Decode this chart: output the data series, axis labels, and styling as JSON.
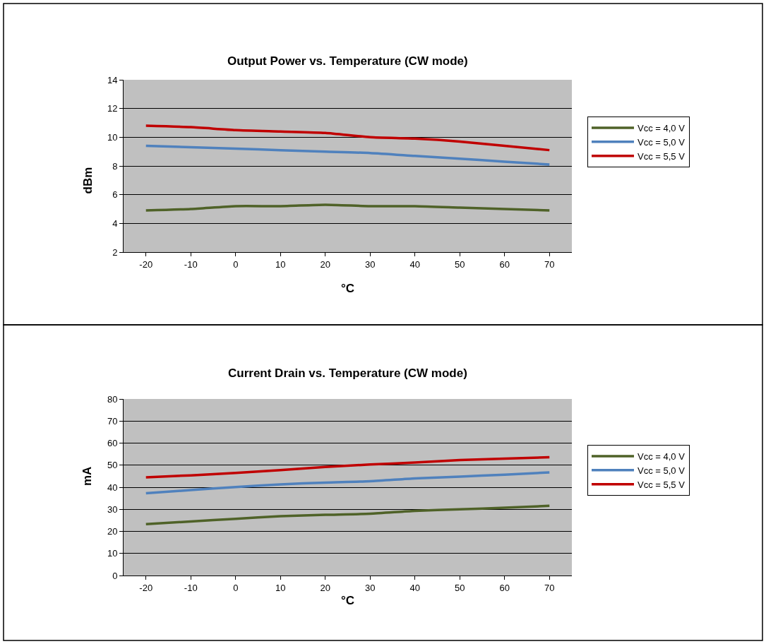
{
  "chart_data": [
    {
      "type": "line",
      "title": "Output Power vs. Temperature (CW mode)",
      "xlabel": "°C",
      "ylabel": "dBm",
      "categories": [
        "-20",
        "-10",
        "0",
        "10",
        "20",
        "30",
        "40",
        "50",
        "60",
        "70"
      ],
      "series": [
        {
          "name": "Vcc = 4,0 V",
          "color": "#4f6228",
          "values": [
            4.9,
            5.0,
            5.2,
            5.2,
            5.3,
            5.2,
            5.2,
            5.1,
            5.0,
            4.9
          ]
        },
        {
          "name": "Vcc = 5,0 V",
          "color": "#4f81bd",
          "values": [
            9.4,
            9.3,
            9.2,
            9.1,
            9.0,
            8.9,
            8.7,
            8.5,
            8.3,
            8.1
          ]
        },
        {
          "name": "Vcc = 5,5 V",
          "color": "#c00000",
          "values": [
            10.8,
            10.7,
            10.5,
            10.4,
            10.3,
            10.0,
            9.9,
            9.7,
            9.4,
            9.1
          ]
        }
      ],
      "ylim": [
        2,
        14
      ],
      "yticks": [
        2,
        4,
        6,
        8,
        10,
        12,
        14
      ],
      "grid": true,
      "legend": "right"
    },
    {
      "type": "line",
      "title": "Current Drain vs. Temperature (CW mode)",
      "xlabel": "°C",
      "ylabel": "mA",
      "categories": [
        "-20",
        "-10",
        "0",
        "10",
        "20",
        "30",
        "40",
        "50",
        "60",
        "70"
      ],
      "series": [
        {
          "name": "Vcc = 4,0 V",
          "color": "#4f6228",
          "values": [
            23.3,
            24.5,
            25.7,
            26.9,
            27.5,
            28.0,
            29.3,
            30.0,
            30.7,
            31.6
          ]
        },
        {
          "name": "Vcc = 5,0 V",
          "color": "#4f81bd",
          "values": [
            37.3,
            38.7,
            40.1,
            41.3,
            42.1,
            42.7,
            44.0,
            44.8,
            45.7,
            46.7
          ]
        },
        {
          "name": "Vcc = 5,5 V",
          "color": "#c00000",
          "values": [
            44.5,
            45.4,
            46.5,
            47.8,
            49.2,
            50.3,
            51.2,
            52.3,
            53.0,
            53.6
          ]
        }
      ],
      "ylim": [
        0,
        80
      ],
      "yticks": [
        0,
        10,
        20,
        30,
        40,
        50,
        60,
        70,
        80
      ],
      "grid": true,
      "legend": "right"
    }
  ]
}
